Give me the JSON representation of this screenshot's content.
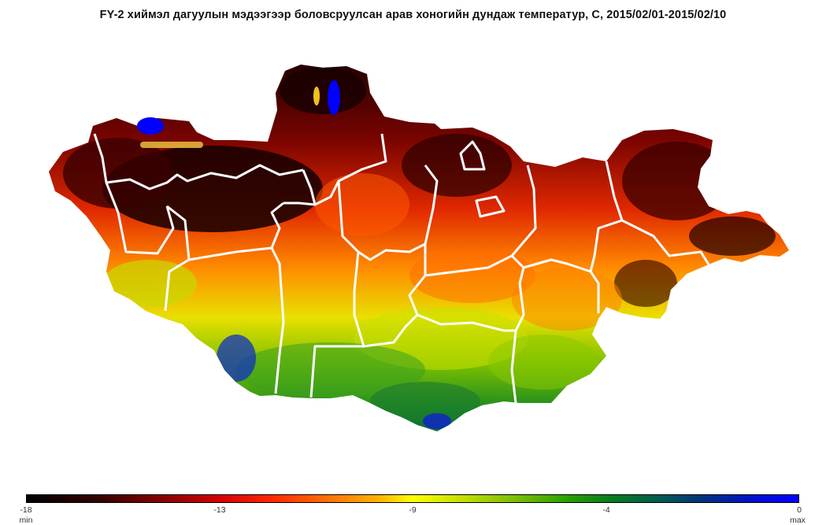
{
  "title": "FY-2 хиймэл дагуулын мэдээгээр боловсруулсан арав хоногийн  дундаж температур, C, 2015/02/01-2015/02/10",
  "colorbar": {
    "ticks": [
      "-18",
      "-13",
      "-9",
      "-4",
      "0"
    ],
    "min_label": "min",
    "max_label": "max",
    "colors": [
      "#000000",
      "#8a0000",
      "#ff2a00",
      "#ffff00",
      "#2aa000",
      "#005a50",
      "#0000ff"
    ]
  }
}
